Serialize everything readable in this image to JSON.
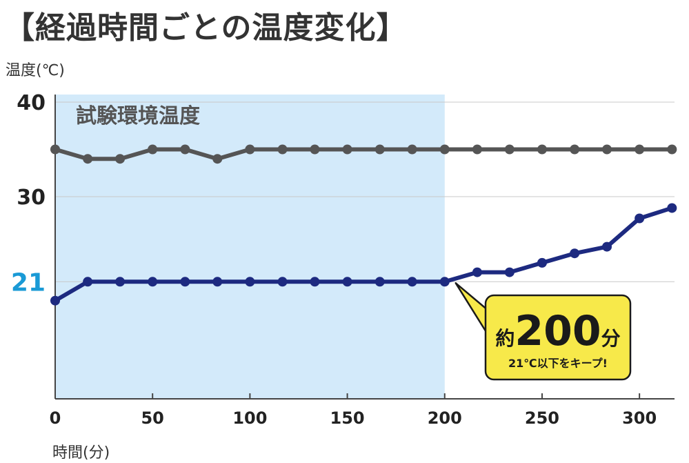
{
  "title": "【経過時間ごとの温度変化】",
  "chart_data": {
    "type": "line",
    "ylabel": "温度(℃)",
    "xlabel": "時間(分)",
    "xlim": [
      0,
      318
    ],
    "ylim": [
      10,
      40
    ],
    "x_ticks": [
      0,
      50,
      100,
      150,
      200,
      250,
      300
    ],
    "y_ticks": [
      40,
      30,
      21
    ],
    "highlight_y_tick": 21,
    "grid": "horizontal",
    "shaded_region": {
      "x_start": 0,
      "x_end": 200,
      "label": "試験環境温度",
      "color": "#d3eafa"
    },
    "x": [
      0,
      16.7,
      33.3,
      50,
      66.7,
      83.3,
      100,
      116.7,
      133.3,
      150,
      166.7,
      183.3,
      200,
      216.7,
      233.3,
      250,
      266.7,
      283.3,
      300,
      316.7
    ],
    "series": [
      {
        "color": "#555555",
        "values": [
          35,
          34,
          34,
          35,
          35,
          34,
          35,
          35,
          35,
          35,
          35,
          35,
          35,
          35,
          35,
          35,
          35,
          35,
          35,
          35
        ]
      },
      {
        "color": "#1d2a80",
        "values": [
          19,
          21,
          21,
          21,
          21,
          21,
          21,
          21,
          21,
          21,
          21,
          21,
          21,
          22,
          22,
          23,
          24,
          24.7,
          27.7,
          28.8
        ]
      }
    ],
    "annotation": {
      "prefix": "約",
      "value": "200",
      "unit": "分",
      "note": "21℃以下をキープ!",
      "color": "#f7e94a"
    }
  }
}
